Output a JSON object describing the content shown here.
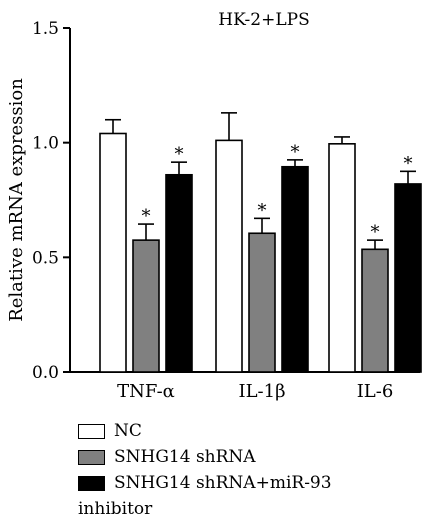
{
  "chart_data": {
    "type": "bar",
    "title": "HK-2+LPS",
    "ylabel": "Relative mRNA expression",
    "xlabel": "",
    "ylim": [
      0,
      1.5
    ],
    "yticks": [
      "0.0",
      "0.5",
      "1.0",
      "1.5"
    ],
    "yticks_values": [
      0,
      0.5,
      1.0,
      1.5
    ],
    "categories": [
      "TNF-α",
      "IL-1β",
      "IL-6"
    ],
    "series": [
      {
        "name": "NC",
        "color": "#ffffff",
        "values": [
          1.04,
          1.01,
          0.995
        ],
        "errors": [
          0.06,
          0.12,
          0.03
        ],
        "significant": [
          false,
          false,
          false
        ]
      },
      {
        "name": "SNHG14 shRNA",
        "color": "#808080",
        "values": [
          0.575,
          0.605,
          0.535
        ],
        "errors": [
          0.07,
          0.065,
          0.04
        ],
        "significant": [
          true,
          true,
          true
        ]
      },
      {
        "name": "SNHG14 shRNA+miR-93 inhibitor",
        "color": "#000000",
        "values": [
          0.86,
          0.895,
          0.82
        ],
        "errors": [
          0.055,
          0.03,
          0.055
        ],
        "significant": [
          true,
          true,
          true
        ]
      }
    ],
    "significance_marker": "*",
    "legend": {
      "position": "bottom-left",
      "items": [
        "NC",
        "SNHG14 shRNA",
        "SNHG14 shRNA+miR-93",
        "inhibitor"
      ]
    }
  }
}
